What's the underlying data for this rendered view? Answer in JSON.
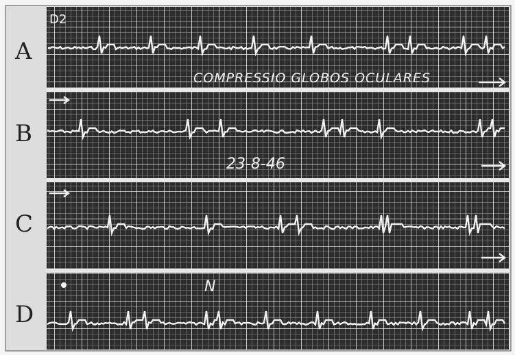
{
  "lead": "D2",
  "strips": [
    {
      "label": "A"
    },
    {
      "label": "B"
    },
    {
      "label": "C"
    },
    {
      "label": "D"
    }
  ],
  "annotations": {
    "procedure": "COMPRESSIO GLOBOS OCULARES",
    "date": "23-8-46",
    "marker": "N"
  }
}
